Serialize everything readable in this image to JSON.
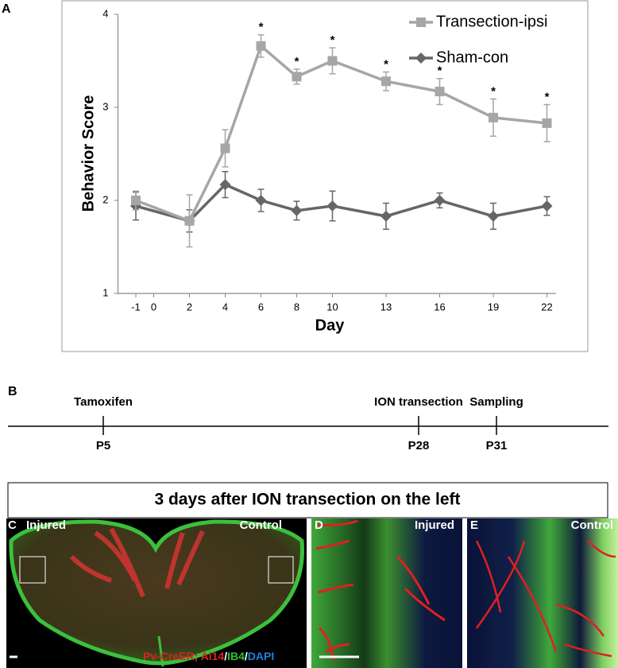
{
  "chart_data": {
    "type": "line",
    "panel_label": "A",
    "xlabel": "Day",
    "ylabel": "Behavior Score",
    "x": [
      -1,
      2,
      4,
      6,
      8,
      10,
      13,
      16,
      19,
      22
    ],
    "xlim": [
      -2,
      22.5
    ],
    "xticks": [
      -1,
      0,
      2,
      4,
      6,
      8,
      10,
      13,
      16,
      19,
      22
    ],
    "ylim": [
      1,
      4
    ],
    "yticks": [
      1,
      2,
      3,
      4
    ],
    "legend": "top-right",
    "series": [
      {
        "name": "Transection-ipsi",
        "color": "#a6a6a6",
        "marker": "square",
        "values": [
          2.0,
          1.78,
          2.56,
          3.66,
          3.33,
          3.5,
          3.28,
          3.17,
          2.89,
          2.83
        ],
        "errors": [
          0.1,
          0.28,
          0.2,
          0.12,
          0.08,
          0.14,
          0.1,
          0.14,
          0.2,
          0.2
        ]
      },
      {
        "name": "Sham-con",
        "color": "#666666",
        "marker": "diamond",
        "values": [
          1.94,
          1.78,
          2.17,
          2.0,
          1.89,
          1.94,
          1.83,
          2.0,
          1.83,
          1.94
        ],
        "errors": [
          0.15,
          0.12,
          0.14,
          0.12,
          0.1,
          0.16,
          0.14,
          0.08,
          0.14,
          0.1
        ]
      }
    ],
    "annotations": [
      {
        "x": 6,
        "text": "*"
      },
      {
        "x": 8,
        "text": "*"
      },
      {
        "x": 10,
        "text": "*"
      },
      {
        "x": 13,
        "text": "*"
      },
      {
        "x": 16,
        "text": "*"
      },
      {
        "x": 19,
        "text": "*"
      },
      {
        "x": 22,
        "text": "*"
      }
    ]
  },
  "timeline": {
    "label": "B",
    "events": [
      {
        "above": "Tamoxifen",
        "below": "P5"
      },
      {
        "above": "ION transection",
        "below": "P28"
      },
      {
        "above": "Sampling",
        "below": "P31"
      }
    ]
  },
  "images": {
    "title": "3 days after ION transection on the left",
    "panels": [
      {
        "label": "C",
        "left": "Injured",
        "right": "Control"
      },
      {
        "label": "D",
        "right": "Injured"
      },
      {
        "label": "E",
        "right": "Control"
      }
    ],
    "stain": [
      "Pv-CreER; Ai14",
      "/",
      "IB4",
      "/",
      "DAPI"
    ]
  }
}
